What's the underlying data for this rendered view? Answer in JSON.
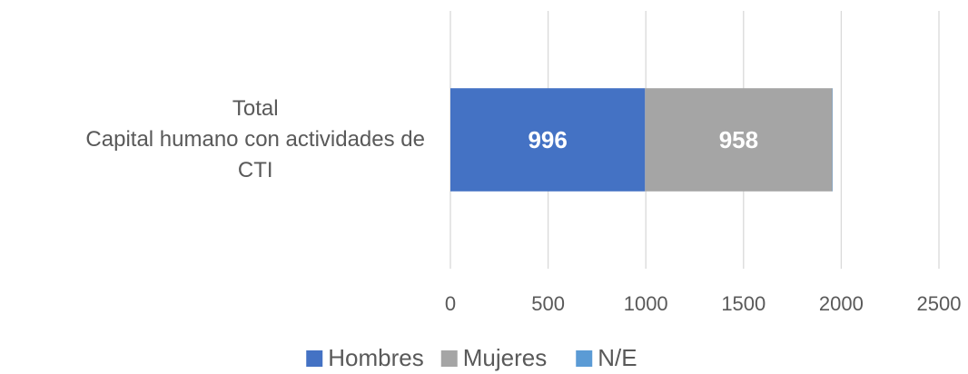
{
  "chart_data": {
    "type": "bar",
    "orientation": "horizontal",
    "stacked": true,
    "categories": [
      "Total\nCapital humano con actividades de\nCTI"
    ],
    "series": [
      {
        "name": "Hombres",
        "color": "#4472c4",
        "values": [
          996
        ]
      },
      {
        "name": "Mujeres",
        "color": "#a5a5a5",
        "values": [
          958
        ]
      },
      {
        "name": "N/E",
        "color": "#5b9bd5",
        "values": [
          2
        ]
      }
    ],
    "xlim": [
      0,
      2500
    ],
    "xticks": [
      0,
      500,
      1000,
      1500,
      2000,
      2500
    ],
    "grid": true,
    "legend": "bottom",
    "data_labels": true
  }
}
